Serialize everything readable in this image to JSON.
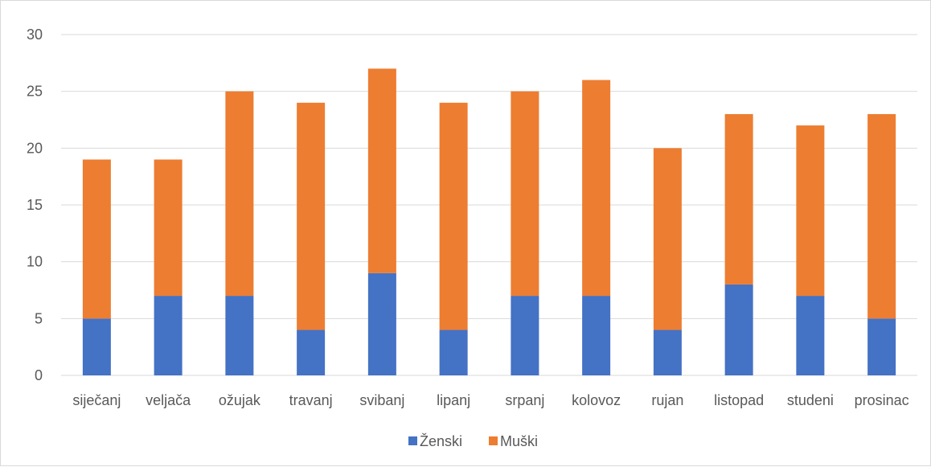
{
  "chart_data": {
    "type": "bar",
    "stacked": true,
    "categories": [
      "siječanj",
      "veljača",
      "ožujak",
      "travanj",
      "svibanj",
      "lipanj",
      "srpanj",
      "kolovoz",
      "rujan",
      "listopad",
      "studeni",
      "prosinac"
    ],
    "series": [
      {
        "name": "Ženski",
        "color": "#4472c4",
        "values": [
          5,
          7,
          7,
          4,
          9,
          4,
          7,
          7,
          4,
          8,
          7,
          5
        ]
      },
      {
        "name": "Muški",
        "color": "#ed7d31",
        "values": [
          14,
          12,
          18,
          20,
          18,
          20,
          18,
          19,
          16,
          15,
          15,
          18
        ]
      }
    ],
    "ylim": [
      0,
      30
    ],
    "yticks": [
      0,
      5,
      10,
      15,
      20,
      25,
      30
    ],
    "grid": true,
    "legend_position": "bottom",
    "gridline_color": "#d9d9d9",
    "text_color": "#595959"
  }
}
